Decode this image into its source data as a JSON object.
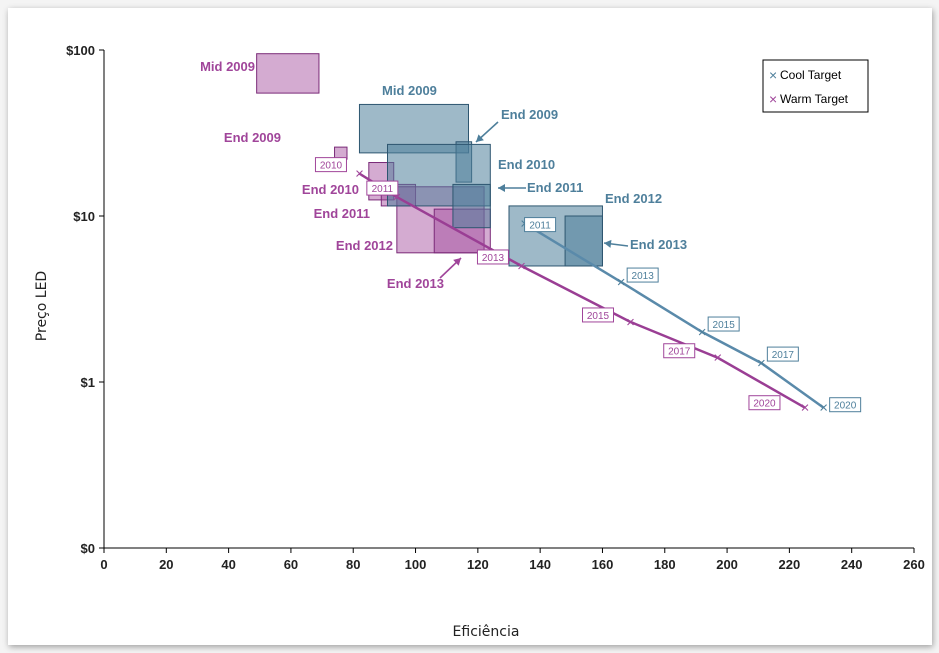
{
  "chart_data": {
    "type": "scatter",
    "xlabel": "Eficiência",
    "ylabel": "Preço LED",
    "xlim": [
      0,
      260
    ],
    "x_ticks": [
      "0",
      "20",
      "40",
      "60",
      "80",
      "100",
      "120",
      "140",
      "160",
      "180",
      "200",
      "220",
      "240",
      "260"
    ],
    "y_scale": "log",
    "y_ticks": [
      "$0",
      "$1",
      "$10",
      "$100"
    ],
    "grid": false,
    "legend_position": "top-right",
    "colors": {
      "cool": "#4e7f9b",
      "warm": "#a0459a",
      "cool_line": "#5a8aaa",
      "warm_line": "#9a3e94"
    },
    "series": [
      {
        "name": "Cool Target",
        "marker": "×",
        "points": [
          {
            "x": 135,
            "y": 9.0,
            "label": "2011"
          },
          {
            "x": 166,
            "y": 4.0,
            "label": "2013"
          },
          {
            "x": 192,
            "y": 2.0,
            "label": "2015"
          },
          {
            "x": 211,
            "y": 1.3,
            "label": "2017"
          },
          {
            "x": 231,
            "y": 0.7,
            "label": "2020"
          }
        ]
      },
      {
        "name": "Warm Target",
        "marker": "×",
        "points": [
          {
            "x": 82,
            "y": 18.0,
            "label": "2010"
          },
          {
            "x": 94,
            "y": 13.0,
            "label": "2011"
          },
          {
            "x": 134,
            "y": 5.0,
            "label": "2013"
          },
          {
            "x": 169,
            "y": 2.3,
            "label": "2015"
          },
          {
            "x": 197,
            "y": 1.4,
            "label": "2017"
          },
          {
            "x": 225,
            "y": 0.7,
            "label": "2020"
          }
        ]
      }
    ],
    "boxes": [
      {
        "label": "Mid 2009",
        "group": "warm",
        "x0": 49,
        "x1": 69,
        "y0": 55,
        "y1": 95
      },
      {
        "label": "End 2009",
        "group": "warm",
        "x0": 74,
        "x1": 78,
        "y0": 22,
        "y1": 26
      },
      {
        "label": "End 2010",
        "group": "warm",
        "x0": 85,
        "x1": 93,
        "y0": 12.5,
        "y1": 21
      },
      {
        "label": "End 2011",
        "group": "warm",
        "x0": 89,
        "x1": 100,
        "y0": 11.5,
        "y1": 15.5
      },
      {
        "label": "End 2012",
        "group": "warm",
        "x0": 94,
        "x1": 122,
        "y0": 6,
        "y1": 15
      },
      {
        "label": "End 2013",
        "group": "warm",
        "x0": 106,
        "x1": 124,
        "y0": 6,
        "y1": 11
      },
      {
        "label": "Mid 2009",
        "group": "cool",
        "x0": 82,
        "x1": 117,
        "y0": 24,
        "y1": 47
      },
      {
        "label": "End 2009",
        "group": "cool",
        "x0": 113,
        "x1": 118,
        "y0": 16,
        "y1": 28
      },
      {
        "label": "End 2010",
        "group": "cool",
        "x0": 91,
        "x1": 124,
        "y0": 11.5,
        "y1": 27
      },
      {
        "label": "End 2011",
        "group": "cool",
        "x0": 112,
        "x1": 124,
        "y0": 8.5,
        "y1": 15.5
      },
      {
        "label": "End 2012",
        "group": "cool",
        "x0": 130,
        "x1": 160,
        "y0": 5,
        "y1": 11.5
      },
      {
        "label": "End 2013",
        "group": "cool",
        "x0": 148,
        "x1": 160,
        "y0": 5,
        "y1": 10
      }
    ],
    "annotations": [
      {
        "text": "Mid 2009",
        "group": "warm"
      },
      {
        "text": "End 2009",
        "group": "warm"
      },
      {
        "text": "End 2010",
        "group": "warm"
      },
      {
        "text": "End 2011",
        "group": "warm"
      },
      {
        "text": "End 2012",
        "group": "warm"
      },
      {
        "text": "End 2013",
        "group": "warm"
      },
      {
        "text": "Mid 2009",
        "group": "cool"
      },
      {
        "text": "End 2009",
        "group": "cool"
      },
      {
        "text": "End 2010",
        "group": "cool"
      },
      {
        "text": "End 2011",
        "group": "cool"
      },
      {
        "text": "End 2012",
        "group": "cool"
      },
      {
        "text": "End 2013",
        "group": "cool"
      }
    ]
  }
}
